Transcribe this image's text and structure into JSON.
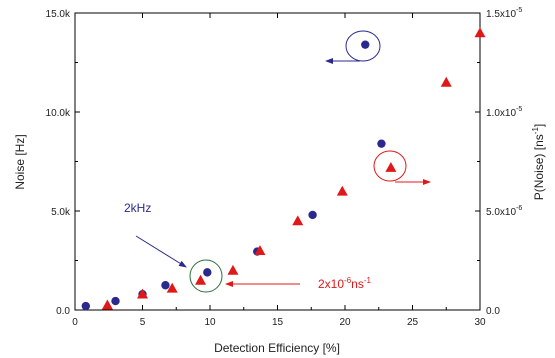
{
  "chart_data": {
    "type": "scatter",
    "xlabel": "Detection Efficiency [%]",
    "ylabel": "Noise [Hz]",
    "ylabel_right": "P(Noise) [ns",
    "ylabel_right_sup": "-1",
    "ylabel_right_tail": "]",
    "xlim": [
      0,
      30
    ],
    "ylim": [
      0,
      15000
    ],
    "ylim_right": [
      0,
      1.5e-05
    ],
    "x_ticks": [
      "0",
      "5",
      "10",
      "15",
      "20",
      "25",
      "30"
    ],
    "y_ticks": [
      "0.0",
      "5.0k",
      "10.0k",
      "15.0k"
    ],
    "y_ticks_right": [
      {
        "m": "0.0",
        "e": ""
      },
      {
        "m": "5.0x10",
        "e": "-6"
      },
      {
        "m": "1.0x10",
        "e": "-5"
      },
      {
        "m": "1.5x10",
        "e": "-5"
      }
    ],
    "series": [
      {
        "marker": "circle",
        "axis": "left",
        "color": "#2a2a8e",
        "points": [
          [
            0.8,
            200
          ],
          [
            3.0,
            450
          ],
          [
            5.0,
            800
          ],
          [
            6.7,
            1250
          ],
          [
            9.8,
            1900
          ],
          [
            13.5,
            2950
          ],
          [
            17.6,
            4800
          ],
          [
            22.7,
            8400
          ],
          [
            21.5,
            13400
          ]
        ]
      },
      {
        "marker": "triangle",
        "axis": "right",
        "color": "#e01818",
        "points": [
          [
            2.4,
            2.5e-07
          ],
          [
            5.0,
            8e-07
          ],
          [
            7.2,
            1.1e-06
          ],
          [
            9.3,
            1.5e-06
          ],
          [
            11.7,
            2e-06
          ],
          [
            13.7,
            3e-06
          ],
          [
            16.5,
            4.5e-06
          ],
          [
            19.8,
            6e-06
          ],
          [
            23.4,
            7.2e-06
          ],
          [
            27.5,
            1.15e-05
          ],
          [
            30.0,
            1.4e-05
          ]
        ]
      }
    ],
    "annotations": {
      "kHz_label": "2kHz",
      "kHz_color": "#2a2a8e",
      "prob_label_main": "2x10",
      "prob_label_sup": "-6",
      "prob_label_unit": "ns",
      "prob_label_unit_sup": "-1",
      "prob_color": "#e01818",
      "green_circle_color": "#2b6e3a"
    }
  }
}
